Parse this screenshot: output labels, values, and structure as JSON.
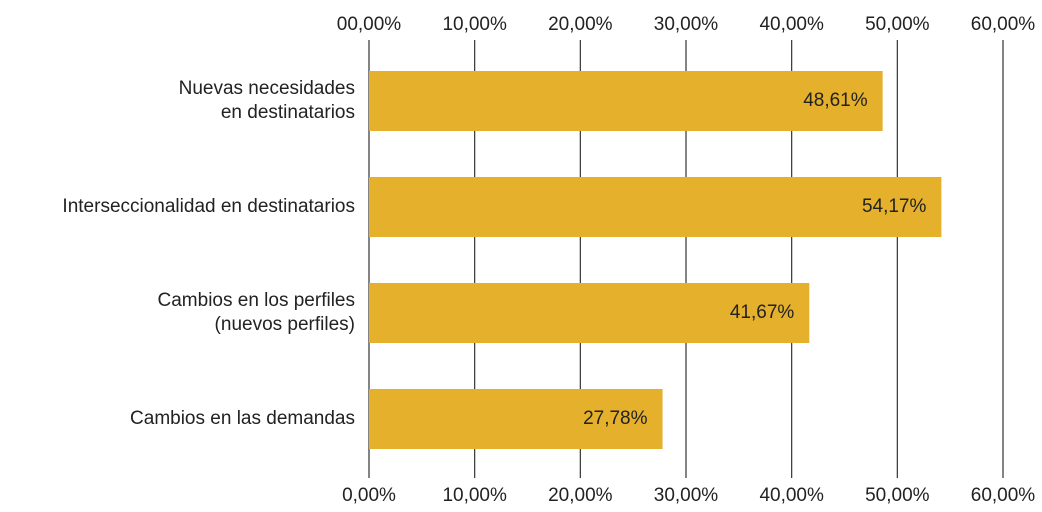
{
  "chart_data": {
    "type": "bar",
    "orientation": "horizontal",
    "categories": [
      "Nuevas necesidades\nen destinatarios",
      "Interseccionalidad en destinatarios",
      "Cambios en los perfiles\n(nuevos perfiles)",
      "Cambios en las demandas"
    ],
    "values": [
      48.61,
      54.17,
      41.67,
      27.78
    ],
    "value_labels": [
      "48,61%",
      "54,17%",
      "41,67%",
      "27,78%"
    ],
    "color": "#e5b02b",
    "xlim": [
      0,
      60
    ],
    "xticks": [
      {
        "value": 0,
        "label": "0,00%"
      },
      {
        "value": 10,
        "label": "10,00%"
      },
      {
        "value": 20,
        "label": "20,00%"
      },
      {
        "value": 30,
        "label": "30,00%"
      },
      {
        "value": 40,
        "label": "40,00%"
      },
      {
        "value": 50,
        "label": "50,00%"
      },
      {
        "value": 60,
        "label": "60,00%"
      }
    ],
    "x2ticks": [
      {
        "value": 0,
        "label": "00,00%"
      },
      {
        "value": 10,
        "label": "10,00%"
      },
      {
        "value": 20,
        "label": "20,00%"
      },
      {
        "value": 30,
        "label": "30,00%"
      },
      {
        "value": 40,
        "label": "40,00%"
      },
      {
        "value": 50,
        "label": "50,00%"
      },
      {
        "value": 60,
        "label": "60,00%"
      }
    ],
    "grid": true
  }
}
